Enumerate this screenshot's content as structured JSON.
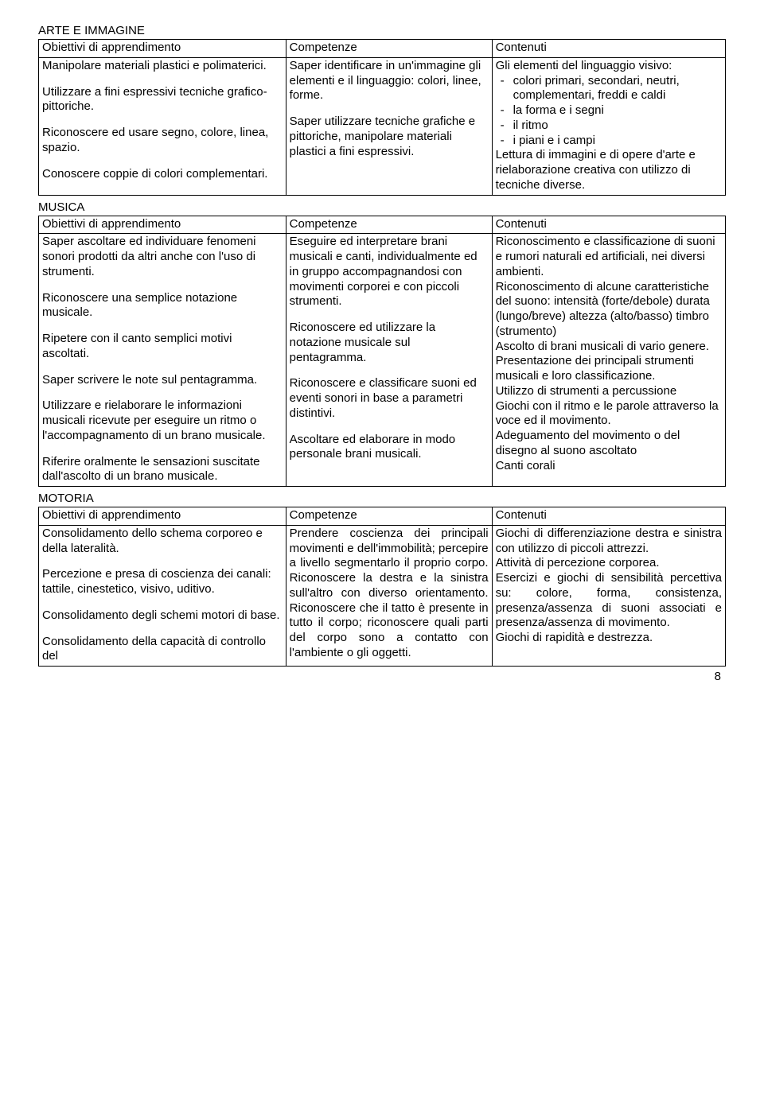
{
  "arte": {
    "title": "ARTE E IMMAGINE",
    "headers": [
      "Obiettivi di apprendimento",
      "Competenze",
      "Contenuti"
    ],
    "col1": [
      "Manipolare materiali plastici e polimaterici.",
      "Utilizzare a fini espressivi tecniche grafico-pittoriche.",
      "Riconoscere ed usare segno, colore, linea, spazio.",
      "Conoscere coppie di colori complementari."
    ],
    "col2": [
      "Saper identificare in un'immagine gli elementi e il linguaggio: colori, linee, forme.",
      "Saper utilizzare tecniche grafiche e pittoriche, manipolare materiali plastici a fini espressivi."
    ],
    "col3_intro": "Gli elementi del linguaggio visivo:",
    "col3_items": [
      "colori primari, secondari, neutri, complementari, freddi e caldi",
      "la forma e i segni",
      "il ritmo",
      "i piani e i campi"
    ],
    "col3_outro": "Lettura di immagini e di opere d'arte e rielaborazione creativa con utilizzo di tecniche diverse."
  },
  "musica": {
    "title": "MUSICA",
    "headers": [
      "Obiettivi di apprendimento",
      "Competenze",
      "Contenuti"
    ],
    "col1": [
      "Saper ascoltare ed individuare fenomeni sonori prodotti da altri anche con l'uso di strumenti.",
      "Riconoscere una semplice notazione musicale.",
      "Ripetere con il canto semplici motivi ascoltati.",
      "Saper scrivere le note sul pentagramma.",
      "Utilizzare e rielaborare le informazioni musicali ricevute per eseguire un ritmo o l'accompagnamento di un brano musicale.",
      "Riferire oralmente le sensazioni suscitate dall'ascolto di un brano musicale."
    ],
    "col2": [
      "Eseguire ed interpretare brani musicali e canti, individualmente ed in gruppo accompagnandosi con movimenti corporei e con piccoli strumenti.",
      "Riconoscere ed utilizzare la notazione musicale sul pentagramma.",
      "Riconoscere e classificare suoni ed eventi sonori in base a parametri distintivi.",
      "Ascoltare ed elaborare in modo personale brani musicali."
    ],
    "col3": [
      "Riconoscimento e classificazione di suoni e rumori naturali ed artificiali, nei diversi ambienti.",
      "Riconoscimento di alcune caratteristiche del suono: intensità (forte/debole) durata (lungo/breve) altezza (alto/basso) timbro (strumento)",
      "Ascolto di brani musicali di vario genere.",
      "Presentazione dei principali strumenti musicali e loro classificazione.",
      "Utilizzo di strumenti a percussione",
      "Giochi con il ritmo e le parole attraverso la voce ed il movimento.",
      "Adeguamento del movimento o del disegno al suono ascoltato",
      "Canti corali"
    ]
  },
  "motoria": {
    "title": "MOTORIA",
    "headers": [
      "Obiettivi di apprendimento",
      "Competenze",
      "Contenuti"
    ],
    "col1": [
      "Consolidamento dello schema corporeo e della lateralità.",
      "Percezione e presa di coscienza dei canali: tattile, cinestetico, visivo, uditivo.",
      "Consolidamento degli schemi motori di base.",
      "Consolidamento della capacità di controllo del"
    ],
    "col2": "Prendere coscienza dei principali movimenti e dell'immobilità; percepire a livello segmentarlo il proprio corpo. Riconoscere la destra e la sinistra sull'altro con diverso orientamento. Riconoscere che il tatto è presente in tutto il corpo; riconoscere quali parti del corpo sono a contatto con l'ambiente o gli oggetti.",
    "col3": [
      "Giochi di differenziazione destra e sinistra con utilizzo di piccoli attrezzi.",
      "Attività di percezione corporea.",
      "Esercizi e giochi di sensibilità percettiva su: colore, forma, consistenza, presenza/assenza di suoni associati e presenza/assenza di movimento.",
      "Giochi di rapidità e destrezza."
    ]
  },
  "page_number": "8"
}
